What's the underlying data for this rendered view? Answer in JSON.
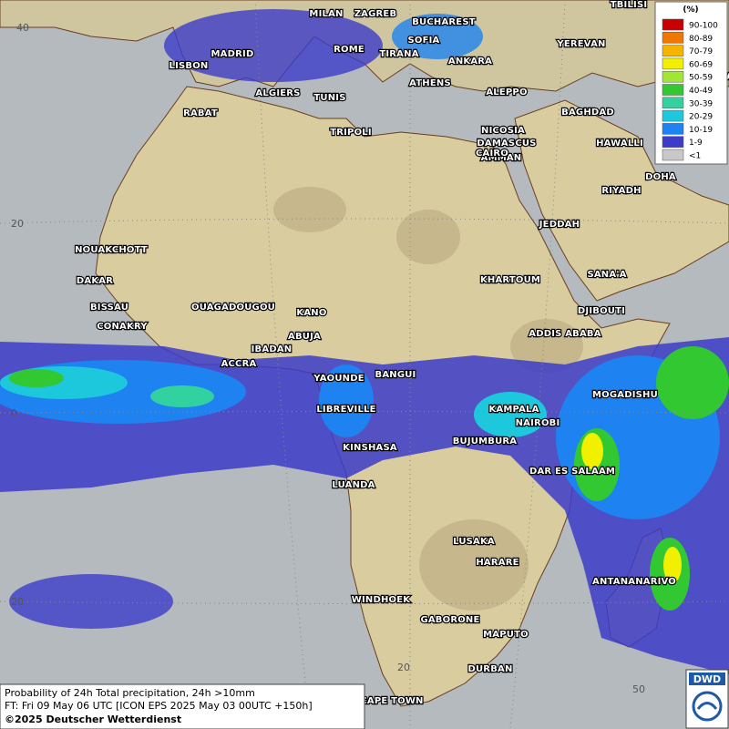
{
  "map": {
    "cities": [
      "MILAN",
      "ZAGREB",
      "BUCHAREST",
      "MADRID",
      "ROME",
      "SOFIA",
      "TIRANA",
      "ANKARA",
      "TBILISI",
      "BAKU",
      "YEREVAN",
      "TEHRAN",
      "LISBON",
      "ALGIERS",
      "TUNIS",
      "ATHENS",
      "ALEPPO",
      "RABAT",
      "NICOSIA",
      "BAGHDAD",
      "DAMASCUS",
      "AMMAN",
      "TRIPOLI",
      "HAWALLI",
      "CAIRO",
      "DOHA",
      "RIYADH",
      "JEDDAH",
      "NOUAKCHOTT",
      "DAKAR",
      "SANA'A",
      "KHARTOUM",
      "BISSAU",
      "CONAKRY",
      "OUAGADOUGOU",
      "KANO",
      "DJIBOUTI",
      "ABUJA",
      "ADDIS ABABA",
      "IBADAN",
      "ACCRA",
      "YAOUNDE",
      "BANGUI",
      "MOGADISHU",
      "LIBREVILLE",
      "KAMPALA",
      "NAIROBI",
      "KINSHASA",
      "BUJUMBURA",
      "DAR ES SALAAM",
      "LUANDA",
      "LUSAKA",
      "HARARE",
      "ANTANANARIVO",
      "WINDHOEK",
      "GABORONE",
      "MAPUTO",
      "DURBAN",
      "CAPE TOWN"
    ],
    "lat_labels": [
      "40",
      "20",
      "0",
      "20"
    ],
    "lon_labels": [
      "20",
      "50"
    ]
  },
  "legend": {
    "title": "(%)",
    "classes": [
      {
        "label": "90-100",
        "color": "#c80000"
      },
      {
        "label": "80-89",
        "color": "#f07800"
      },
      {
        "label": "70-79",
        "color": "#f5b400"
      },
      {
        "label": "60-69",
        "color": "#f0f000"
      },
      {
        "label": "50-59",
        "color": "#a0e632"
      },
      {
        "label": "40-49",
        "color": "#32c832"
      },
      {
        "label": "30-39",
        "color": "#32d2a0"
      },
      {
        "label": "20-29",
        "color": "#1ec8dc"
      },
      {
        "label": "10-19",
        "color": "#1e82f0"
      },
      {
        "label": "1-9",
        "color": "#3c3cc8"
      },
      {
        "label": "<1",
        "color": "#c8c8c8"
      }
    ]
  },
  "footer": {
    "line1": "Probability of 24h Total precipitation, 24h >10mm",
    "line2": "FT: Fri 09 May 06 UTC [ICON EPS 2025 May 03 00UTC +150h]",
    "line3": "©2025 Deutscher Wetterdienst"
  },
  "logo": "DWD"
}
